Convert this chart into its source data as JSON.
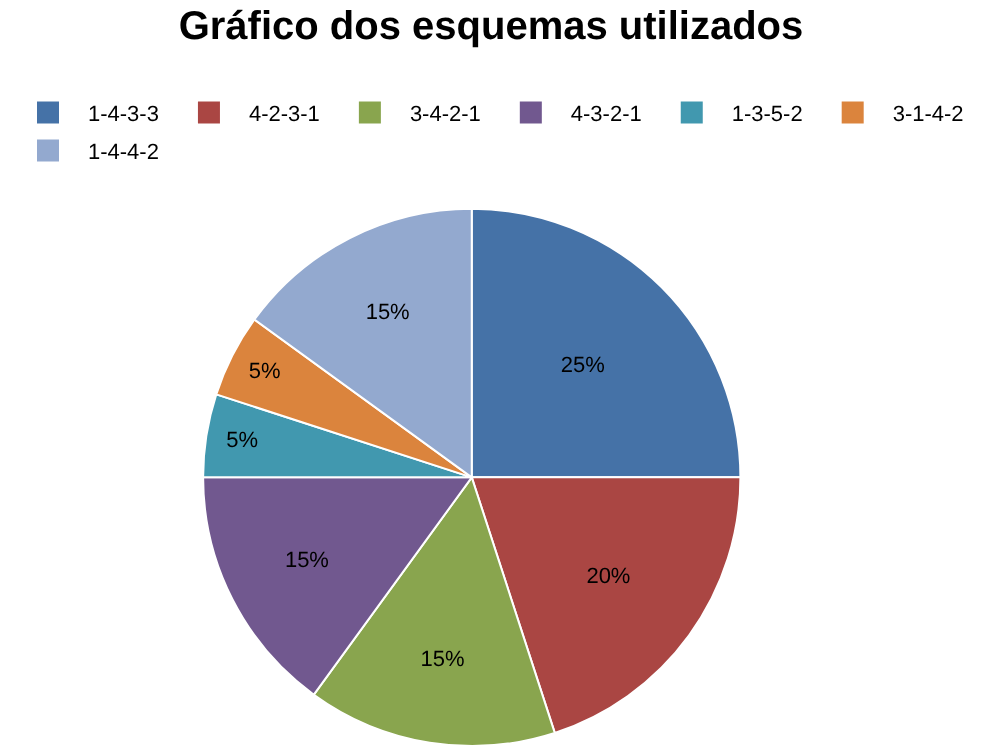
{
  "chart_data": {
    "type": "pie",
    "title": "Gráfico dos esquemas utilizados",
    "categories": [
      "1-4-3-3",
      "4-2-3-1",
      "3-4-2-1",
      "4-3-2-1",
      "1-3-5-2",
      "3-1-4-2",
      "1-4-4-2"
    ],
    "values": [
      25,
      20,
      15,
      15,
      5,
      5,
      15
    ],
    "colors": [
      "#4572a7",
      "#aa4643",
      "#89a54e",
      "#71588f",
      "#4198af",
      "#db843d",
      "#93a9cf"
    ],
    "value_labels": [
      "25%",
      "20%",
      "15%",
      "15%",
      "5%",
      "5%",
      "15%"
    ],
    "legend": "top"
  }
}
